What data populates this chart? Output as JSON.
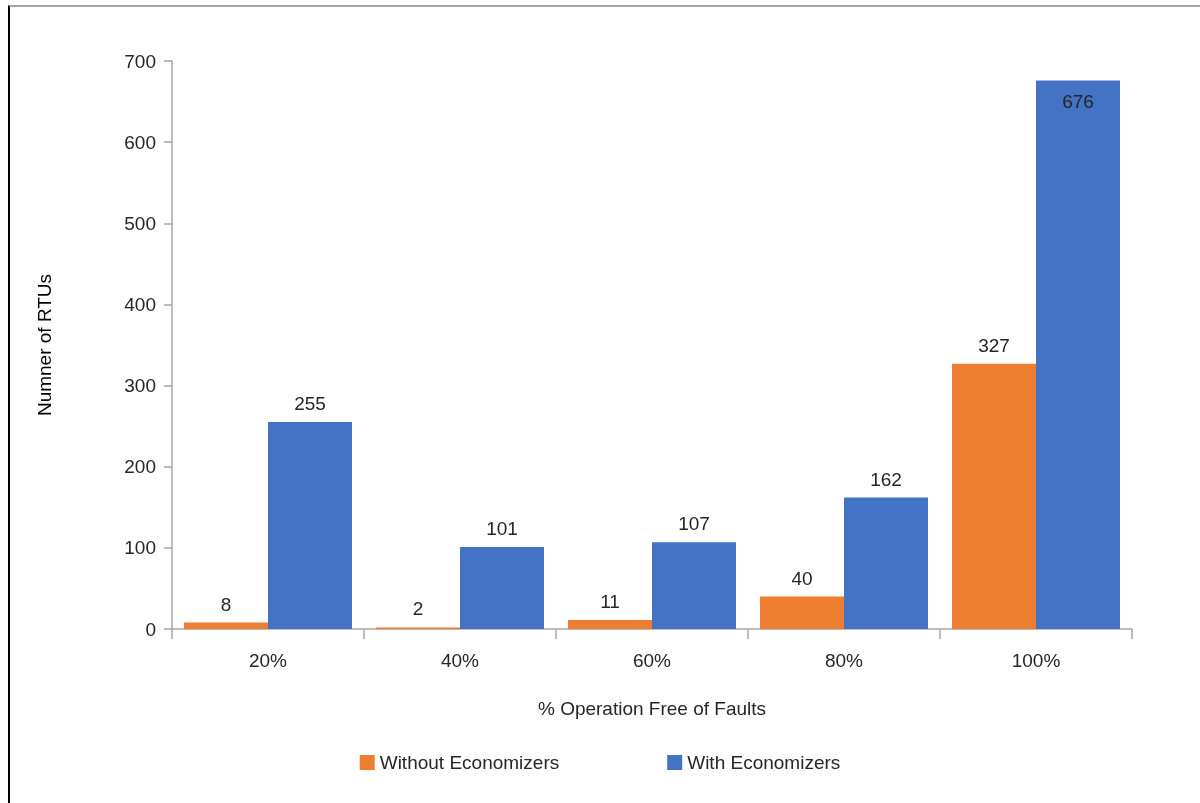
{
  "chart_data": {
    "type": "bar",
    "xlabel": "% Operation Free of Faults",
    "ylabel": "Numner of RTUs",
    "categories": [
      "20%",
      "40%",
      "60%",
      "80%",
      "100%"
    ],
    "series": [
      {
        "name": "Without Economizers",
        "color": "#ed7d31",
        "values": [
          8,
          2,
          11,
          40,
          327
        ]
      },
      {
        "name": "With Economizers",
        "color": "#4472c4",
        "values": [
          255,
          101,
          107,
          162,
          676
        ]
      }
    ],
    "ylim": [
      0,
      700
    ],
    "yticks": [
      0,
      100,
      200,
      300,
      400,
      500,
      600,
      700
    ],
    "grid": false,
    "legend": "bottom",
    "data_labels": true
  }
}
